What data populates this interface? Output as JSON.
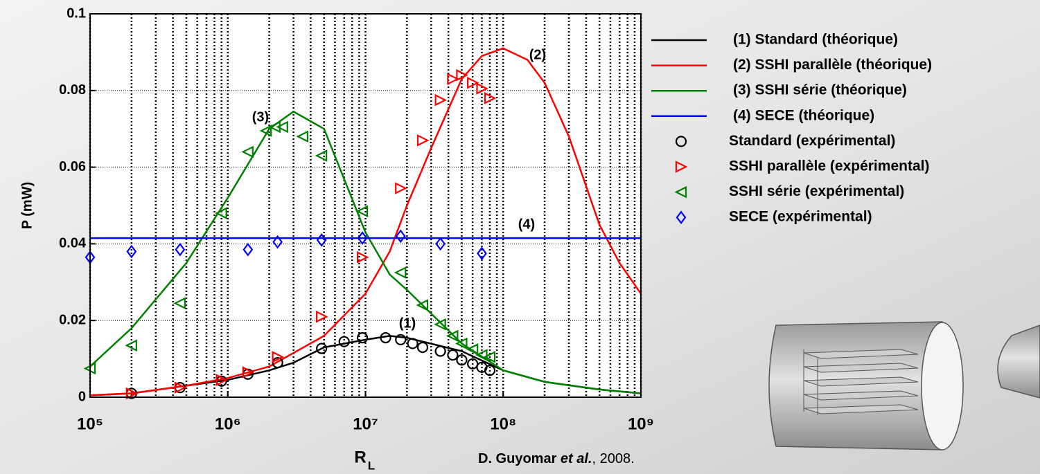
{
  "chart_data": {
    "type": "line",
    "xlabel": "R",
    "xlabel_sub": "L",
    "ylabel": "P (mW)",
    "xlog": true,
    "xlim": [
      100000,
      1000000000
    ],
    "xticks": [
      {
        "value": 100000,
        "label": "10⁵"
      },
      {
        "value": 1000000,
        "label": "10⁶"
      },
      {
        "value": 10000000,
        "label": "10⁷"
      },
      {
        "value": 100000000,
        "label": "10⁸"
      },
      {
        "value": 1000000000,
        "label": "10⁹"
      }
    ],
    "ylim": [
      0,
      0.1
    ],
    "yticks": [
      0,
      0.02,
      0.04,
      0.06,
      0.08,
      0.1
    ],
    "grid": true,
    "minor_grid": true,
    "legend": "right",
    "annotations": [
      "(1)",
      "(2)",
      "(3)",
      "(4)"
    ],
    "source": [
      "D. Guyomar ",
      "et al.",
      ", 2008."
    ],
    "series": [
      {
        "name": "(1) Standard (théorique)",
        "color": "#000000",
        "style": "line",
        "x": [
          100000,
          200000,
          500000,
          1000000,
          2000000,
          3000000,
          5000000,
          10000000,
          15000000,
          20000000,
          50000000,
          100000000,
          200000000,
          500000000,
          1000000000
        ],
        "values": [
          0.0005,
          0.001,
          0.003,
          0.0045,
          0.007,
          0.009,
          0.013,
          0.015,
          0.016,
          0.0155,
          0.012,
          0.007,
          0.004,
          0.002,
          0.001
        ]
      },
      {
        "name": "(2) SSHI parallèle (théorique)",
        "color": "#ff0000",
        "style": "line",
        "x": [
          100000,
          200000,
          500000,
          1000000,
          2000000,
          5000000,
          10000000,
          15000000,
          20000000,
          30000000,
          50000000,
          70000000,
          100000000,
          150000000,
          200000000,
          300000000,
          500000000,
          700000000,
          1000000000
        ],
        "values": [
          0.0005,
          0.001,
          0.003,
          0.005,
          0.008,
          0.016,
          0.027,
          0.038,
          0.05,
          0.065,
          0.083,
          0.089,
          0.091,
          0.088,
          0.082,
          0.068,
          0.045,
          0.035,
          0.027
        ]
      },
      {
        "name": "(3) SSHI série (théorique)",
        "color": "#008000",
        "style": "line",
        "x": [
          100000,
          200000,
          500000,
          1000000,
          2000000,
          3000000,
          5000000,
          10000000,
          15000000,
          20000000,
          50000000,
          100000000,
          200000000,
          500000000,
          1000000000
        ],
        "values": [
          0.008,
          0.018,
          0.035,
          0.052,
          0.07,
          0.0745,
          0.07,
          0.043,
          0.032,
          0.028,
          0.014,
          0.007,
          0.004,
          0.002,
          0.001
        ]
      },
      {
        "name": "(4) SECE (théorique)",
        "color": "#0000ff",
        "style": "line",
        "x": [
          100000,
          1000000000
        ],
        "values": [
          0.0415,
          0.0415
        ]
      },
      {
        "name": "Standard (expérimental)",
        "color": "#000000",
        "style": "circle",
        "x": [
          200000,
          450000,
          900000,
          1400000,
          2300000,
          4800000,
          7000000,
          9500000,
          14000000,
          18000000,
          22000000,
          26000000,
          35000000,
          43000000,
          50000000,
          60000000,
          70000000,
          80000000
        ],
        "values": [
          0.001,
          0.0025,
          0.0042,
          0.006,
          0.009,
          0.0127,
          0.0145,
          0.0155,
          0.0155,
          0.015,
          0.014,
          0.013,
          0.012,
          0.011,
          0.0097,
          0.0087,
          0.0078,
          0.007
        ]
      },
      {
        "name": "SSHI parallèle (expérimental)",
        "color": "#ff0000",
        "style": "triangle-right",
        "x": [
          200000,
          450000,
          900000,
          1400000,
          2300000,
          4800000,
          9500000,
          18000000,
          26000000,
          35000000,
          43000000,
          50000000,
          60000000,
          70000000,
          80000000
        ],
        "values": [
          0.001,
          0.0025,
          0.0045,
          0.0065,
          0.0105,
          0.021,
          0.0365,
          0.0545,
          0.067,
          0.0775,
          0.083,
          0.084,
          0.082,
          0.0805,
          0.078
        ]
      },
      {
        "name": "SSHI série (expérimental)",
        "color": "#008000",
        "style": "triangle-left",
        "x": [
          100000,
          200000,
          450000,
          900000,
          1400000,
          1900000,
          2200000,
          2500000,
          3500000,
          4800000,
          9500000,
          18000000,
          26000000,
          35000000,
          43000000,
          50000000,
          60000000,
          70000000,
          80000000
        ],
        "values": [
          0.0075,
          0.0135,
          0.0245,
          0.048,
          0.064,
          0.0695,
          0.0705,
          0.0705,
          0.068,
          0.063,
          0.0485,
          0.0325,
          0.024,
          0.019,
          0.016,
          0.014,
          0.0125,
          0.011,
          0.0105
        ]
      },
      {
        "name": "SECE (expérimental)",
        "color": "#0000ff",
        "style": "diamond",
        "x": [
          100000,
          200000,
          450000,
          1400000,
          2300000,
          4800000,
          9500000,
          18000000,
          35000000,
          70000000
        ],
        "values": [
          0.0365,
          0.038,
          0.0385,
          0.0385,
          0.0405,
          0.041,
          0.0415,
          0.042,
          0.04,
          0.0375
        ]
      }
    ]
  }
}
